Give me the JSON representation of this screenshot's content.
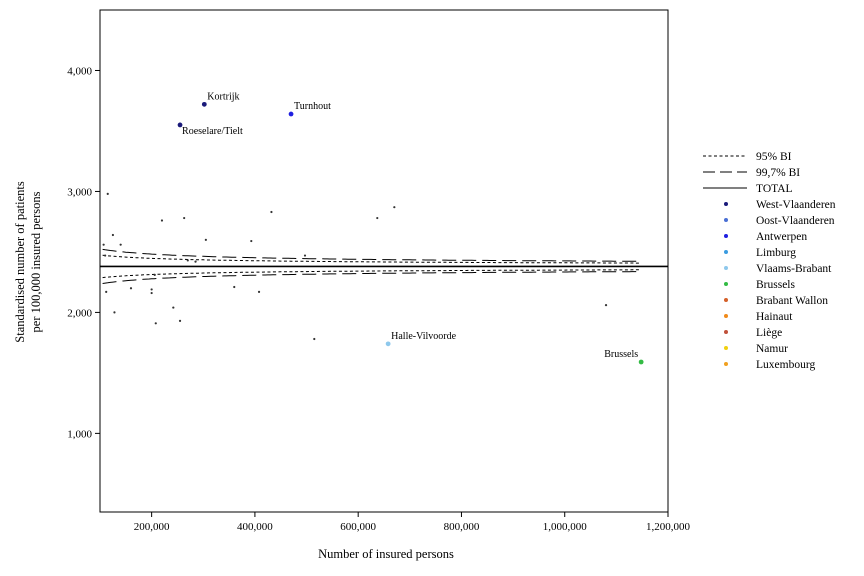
{
  "chart_data": {
    "type": "scatter",
    "title": "",
    "xlabel": "Number of insured persons",
    "ylabel_lines": [
      "Standardised number of patients",
      "per 100,000 insured persons"
    ],
    "xlim": [
      100000,
      1200000
    ],
    "ylim": [
      350,
      4500
    ],
    "x_ticks": [
      200000,
      400000,
      600000,
      800000,
      1000000,
      1200000
    ],
    "x_tick_labels": [
      "200,000",
      "400,000",
      "600,000",
      "800,000",
      "1,000,000",
      "1,200,000"
    ],
    "y_ticks": [
      1000,
      2000,
      3000,
      4000
    ],
    "y_tick_labels": [
      "1,000",
      "2,000",
      "3,000",
      "4,000"
    ],
    "total": 2380,
    "limits": [
      {
        "name": "95% BI",
        "style": "dotted",
        "z": 1.96
      },
      {
        "name": "99,7% BI",
        "style": "dashed",
        "z": 3.0
      }
    ],
    "legend": [
      {
        "label": "95% BI",
        "kind": "dotted"
      },
      {
        "label": "99,7% BI",
        "kind": "dashed"
      },
      {
        "label": "TOTAL",
        "kind": "solid"
      },
      {
        "label": "West-Vlaanderen",
        "kind": "dot",
        "color": "#1a1a7a"
      },
      {
        "label": "Oost-Vlaanderen",
        "kind": "dot",
        "color": "#4a6fd4"
      },
      {
        "label": "Antwerpen",
        "kind": "dot",
        "color": "#1f1fe0"
      },
      {
        "label": "Limburg",
        "kind": "dot",
        "color": "#3a9be0"
      },
      {
        "label": "Vlaams-Brabant",
        "kind": "dot",
        "color": "#8ec8ec"
      },
      {
        "label": "Brussels",
        "kind": "dot",
        "color": "#33bb44"
      },
      {
        "label": "Brabant Wallon",
        "kind": "dot",
        "color": "#d4602a"
      },
      {
        "label": "Hainaut",
        "kind": "dot",
        "color": "#f08a1a"
      },
      {
        "label": "Liège",
        "kind": "dot",
        "color": "#c0503a"
      },
      {
        "label": "Namur",
        "kind": "dot",
        "color": "#f0d010"
      },
      {
        "label": "Luxembourg",
        "kind": "dot",
        "color": "#f0a020"
      }
    ],
    "highlighted": [
      {
        "label": "Kortrijk",
        "x": 302000,
        "y": 3720,
        "color": "#1a1a7a",
        "label_pos": "above-right"
      },
      {
        "label": "Turnhout",
        "x": 470000,
        "y": 3640,
        "color": "#1f1fe0",
        "label_pos": "above-right"
      },
      {
        "label": "Roeselare/Tielt",
        "x": 255000,
        "y": 3550,
        "color": "#1a1a7a",
        "label_pos": "below-right"
      },
      {
        "label": "Halle-Vilvoorde",
        "x": 658000,
        "y": 1740,
        "color": "#8ec8ec",
        "label_pos": "above-right"
      },
      {
        "label": "Brussels",
        "x": 1148000,
        "y": 1590,
        "color": "#33bb44",
        "label_pos": "above-left"
      }
    ],
    "other_points": [
      {
        "x": 107000,
        "y": 2560
      },
      {
        "x": 110000,
        "y": 2470
      },
      {
        "x": 112000,
        "y": 2170
      },
      {
        "x": 115000,
        "y": 2980
      },
      {
        "x": 125000,
        "y": 2640
      },
      {
        "x": 128000,
        "y": 2000
      },
      {
        "x": 140000,
        "y": 2560
      },
      {
        "x": 160000,
        "y": 2200
      },
      {
        "x": 200000,
        "y": 2190
      },
      {
        "x": 200000,
        "y": 2160
      },
      {
        "x": 206000,
        "y": 2310
      },
      {
        "x": 208000,
        "y": 1910
      },
      {
        "x": 220000,
        "y": 2760
      },
      {
        "x": 242000,
        "y": 2040
      },
      {
        "x": 255000,
        "y": 1930
      },
      {
        "x": 263000,
        "y": 2780
      },
      {
        "x": 270000,
        "y": 2430
      },
      {
        "x": 285000,
        "y": 2420
      },
      {
        "x": 305000,
        "y": 2600
      },
      {
        "x": 360000,
        "y": 2210
      },
      {
        "x": 393000,
        "y": 2590
      },
      {
        "x": 408000,
        "y": 2170
      },
      {
        "x": 432000,
        "y": 2830
      },
      {
        "x": 497000,
        "y": 2470
      },
      {
        "x": 515000,
        "y": 1780
      },
      {
        "x": 637000,
        "y": 2780
      },
      {
        "x": 670000,
        "y": 2870
      },
      {
        "x": 1080000,
        "y": 2060
      }
    ]
  }
}
